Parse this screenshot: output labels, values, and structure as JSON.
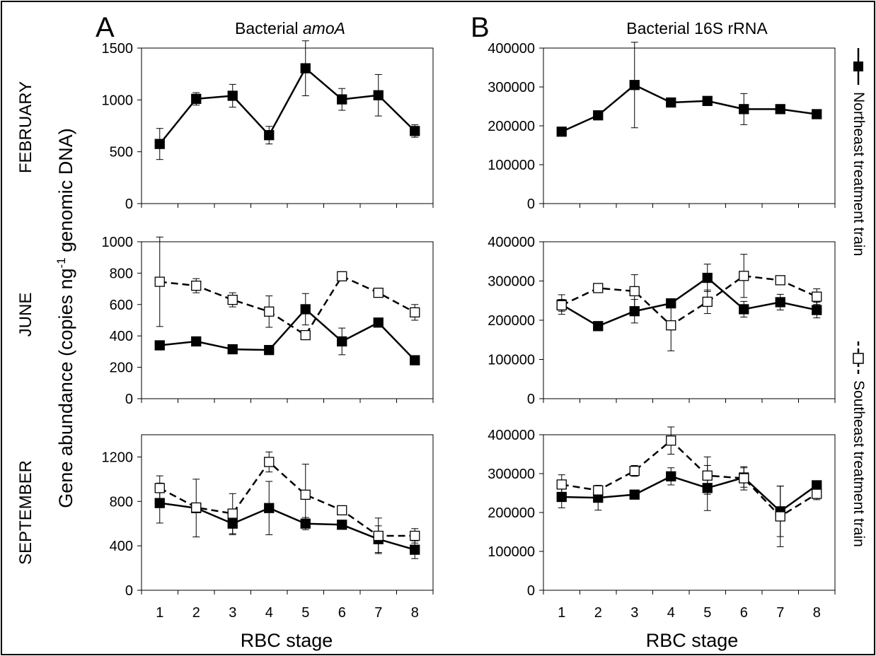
{
  "figure": {
    "panel_letters": [
      "A",
      "B"
    ],
    "panel_titles": [
      {
        "prefix": "Bacterial ",
        "italic": "amoA"
      },
      {
        "prefix": "Bacterial 16S rRNA",
        "italic": ""
      }
    ],
    "row_labels": [
      "FEBRUARY",
      "JUNE",
      "SEPTEMBER"
    ],
    "y_axis_label": {
      "main": "Gene abundance (copies ng",
      "sup": "-1",
      "tail": " genomic DNA)"
    },
    "x_axis_label": "RBC stage",
    "legend": [
      {
        "label": "Northeast treatment train",
        "marker": "filled-square",
        "line": "solid"
      },
      {
        "label": "Southeast treatment train",
        "marker": "open-square",
        "line": "dashed"
      }
    ],
    "colors": {
      "northeast": "#000000",
      "southeast_fill": "#ffffff",
      "axis": "#000000"
    }
  },
  "chart_data": [
    {
      "type": "line",
      "id": "A-FEBRUARY",
      "column": 0,
      "row": 0,
      "x": [
        1,
        2,
        3,
        4,
        5,
        6,
        7,
        8
      ],
      "ylim": [
        0,
        1500
      ],
      "yticks": [
        0,
        500,
        1000,
        1500
      ],
      "series": [
        {
          "name": "Northeast treatment train",
          "style": "northeast",
          "values": [
            575,
            1010,
            1040,
            660,
            1305,
            1005,
            1045,
            700
          ],
          "errors": [
            150,
            60,
            110,
            85,
            265,
            105,
            200,
            60
          ]
        }
      ]
    },
    {
      "type": "line",
      "id": "B-FEBRUARY",
      "column": 1,
      "row": 0,
      "x": [
        1,
        2,
        3,
        4,
        5,
        6,
        7,
        8
      ],
      "ylim": [
        0,
        400000
      ],
      "yticks": [
        0,
        100000,
        200000,
        300000,
        400000
      ],
      "series": [
        {
          "name": "Northeast treatment train",
          "style": "northeast",
          "values": [
            185000,
            227000,
            305000,
            260000,
            264000,
            243000,
            243000,
            230000
          ],
          "errors": [
            4000,
            5000,
            110000,
            5000,
            4000,
            40000,
            4000,
            4000
          ]
        }
      ]
    },
    {
      "type": "line",
      "id": "A-JUNE",
      "column": 0,
      "row": 1,
      "x": [
        1,
        2,
        3,
        4,
        5,
        6,
        7,
        8
      ],
      "ylim": [
        0,
        1000
      ],
      "yticks": [
        0,
        200,
        400,
        600,
        800,
        1000
      ],
      "series": [
        {
          "name": "Northeast treatment train",
          "style": "northeast",
          "values": [
            340,
            365,
            315,
            310,
            570,
            365,
            485,
            245
          ],
          "errors": [
            10,
            10,
            10,
            10,
            100,
            85,
            15,
            10
          ]
        },
        {
          "name": "Southeast treatment train",
          "style": "southeast",
          "values": [
            745,
            720,
            630,
            555,
            405,
            780,
            675,
            550
          ],
          "errors": [
            285,
            45,
            45,
            100,
            10,
            10,
            15,
            50
          ]
        }
      ]
    },
    {
      "type": "line",
      "id": "B-JUNE",
      "column": 1,
      "row": 1,
      "x": [
        1,
        2,
        3,
        4,
        5,
        6,
        7,
        8
      ],
      "ylim": [
        0,
        400000
      ],
      "yticks": [
        0,
        100000,
        200000,
        300000,
        400000
      ],
      "series": [
        {
          "name": "Northeast treatment train",
          "style": "northeast",
          "values": [
            240000,
            185000,
            223000,
            243000,
            308000,
            228000,
            246000,
            226000
          ],
          "errors": [
            25000,
            4000,
            30000,
            4000,
            35000,
            20000,
            20000,
            20000
          ]
        },
        {
          "name": "Southeast treatment train",
          "style": "southeast",
          "values": [
            238000,
            282000,
            274000,
            187000,
            247000,
            313000,
            302000,
            260000
          ],
          "errors": [
            15000,
            4000,
            42000,
            65000,
            30000,
            55000,
            4000,
            20000
          ]
        }
      ]
    },
    {
      "type": "line",
      "id": "A-SEPTEMBER",
      "column": 0,
      "row": 2,
      "x": [
        1,
        2,
        3,
        4,
        5,
        6,
        7,
        8
      ],
      "ylim": [
        0,
        1400
      ],
      "yticks": [
        0,
        400,
        800,
        1200
      ],
      "series": [
        {
          "name": "Northeast treatment train",
          "style": "northeast",
          "values": [
            785,
            740,
            600,
            740,
            600,
            590,
            460,
            365
          ],
          "errors": [
            180,
            260,
            100,
            240,
            55,
            10,
            120,
            80
          ]
        },
        {
          "name": "Southeast treatment train",
          "style": "southeast",
          "values": [
            920,
            745,
            690,
            1155,
            860,
            720,
            490,
            490
          ],
          "errors": [
            110,
            15,
            180,
            90,
            275,
            10,
            160,
            65
          ]
        }
      ]
    },
    {
      "type": "line",
      "id": "B-SEPTEMBER",
      "column": 1,
      "row": 2,
      "x": [
        1,
        2,
        3,
        4,
        5,
        6,
        7,
        8
      ],
      "ylim": [
        0,
        400000
      ],
      "yticks": [
        0,
        100000,
        200000,
        300000,
        400000
      ],
      "series": [
        {
          "name": "Northeast treatment train",
          "style": "northeast",
          "values": [
            240000,
            238000,
            246000,
            293000,
            263000,
            290000,
            203000,
            270000
          ],
          "errors": [
            28000,
            32000,
            4000,
            22000,
            58000,
            25000,
            65000,
            4000
          ]
        },
        {
          "name": "Southeast treatment train",
          "style": "southeast",
          "values": [
            272000,
            257000,
            307000,
            385000,
            295000,
            288000,
            190000,
            248000
          ],
          "errors": [
            25000,
            4000,
            14000,
            35000,
            48000,
            30000,
            78000,
            15000
          ]
        }
      ]
    }
  ]
}
